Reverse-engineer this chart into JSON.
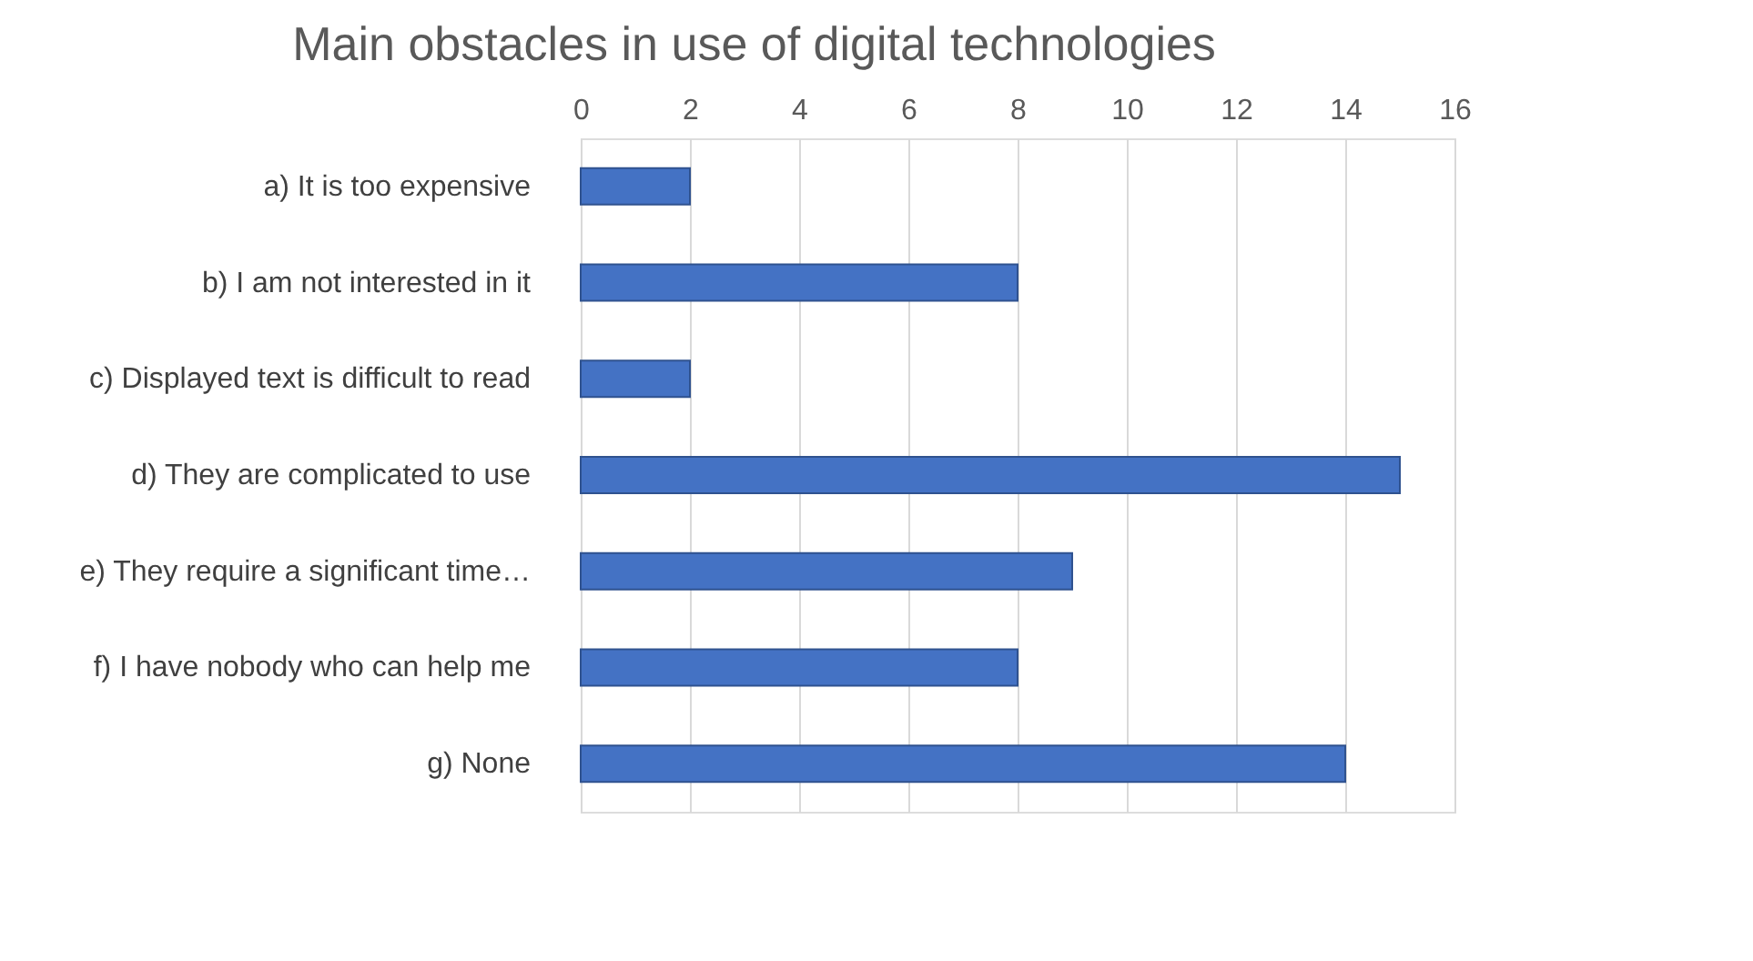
{
  "chart_data": {
    "type": "bar",
    "orientation": "horizontal",
    "title": "Main obstacles in use of digital technologies",
    "categories": [
      "a)      It is too expensive",
      "b)      I am not interested in it",
      "c)      Displayed text is difficult to read",
      "d)      They are complicated to use",
      "e)      They require a significant time…",
      "f)      I have nobody who can help me",
      "g)      None"
    ],
    "values": [
      2,
      8,
      2,
      15,
      9,
      8,
      14
    ],
    "color": "#4472c4",
    "xlim": [
      0,
      16
    ],
    "xticks": [
      0,
      2,
      4,
      6,
      8,
      10,
      12,
      14,
      16
    ],
    "grid": "x"
  }
}
